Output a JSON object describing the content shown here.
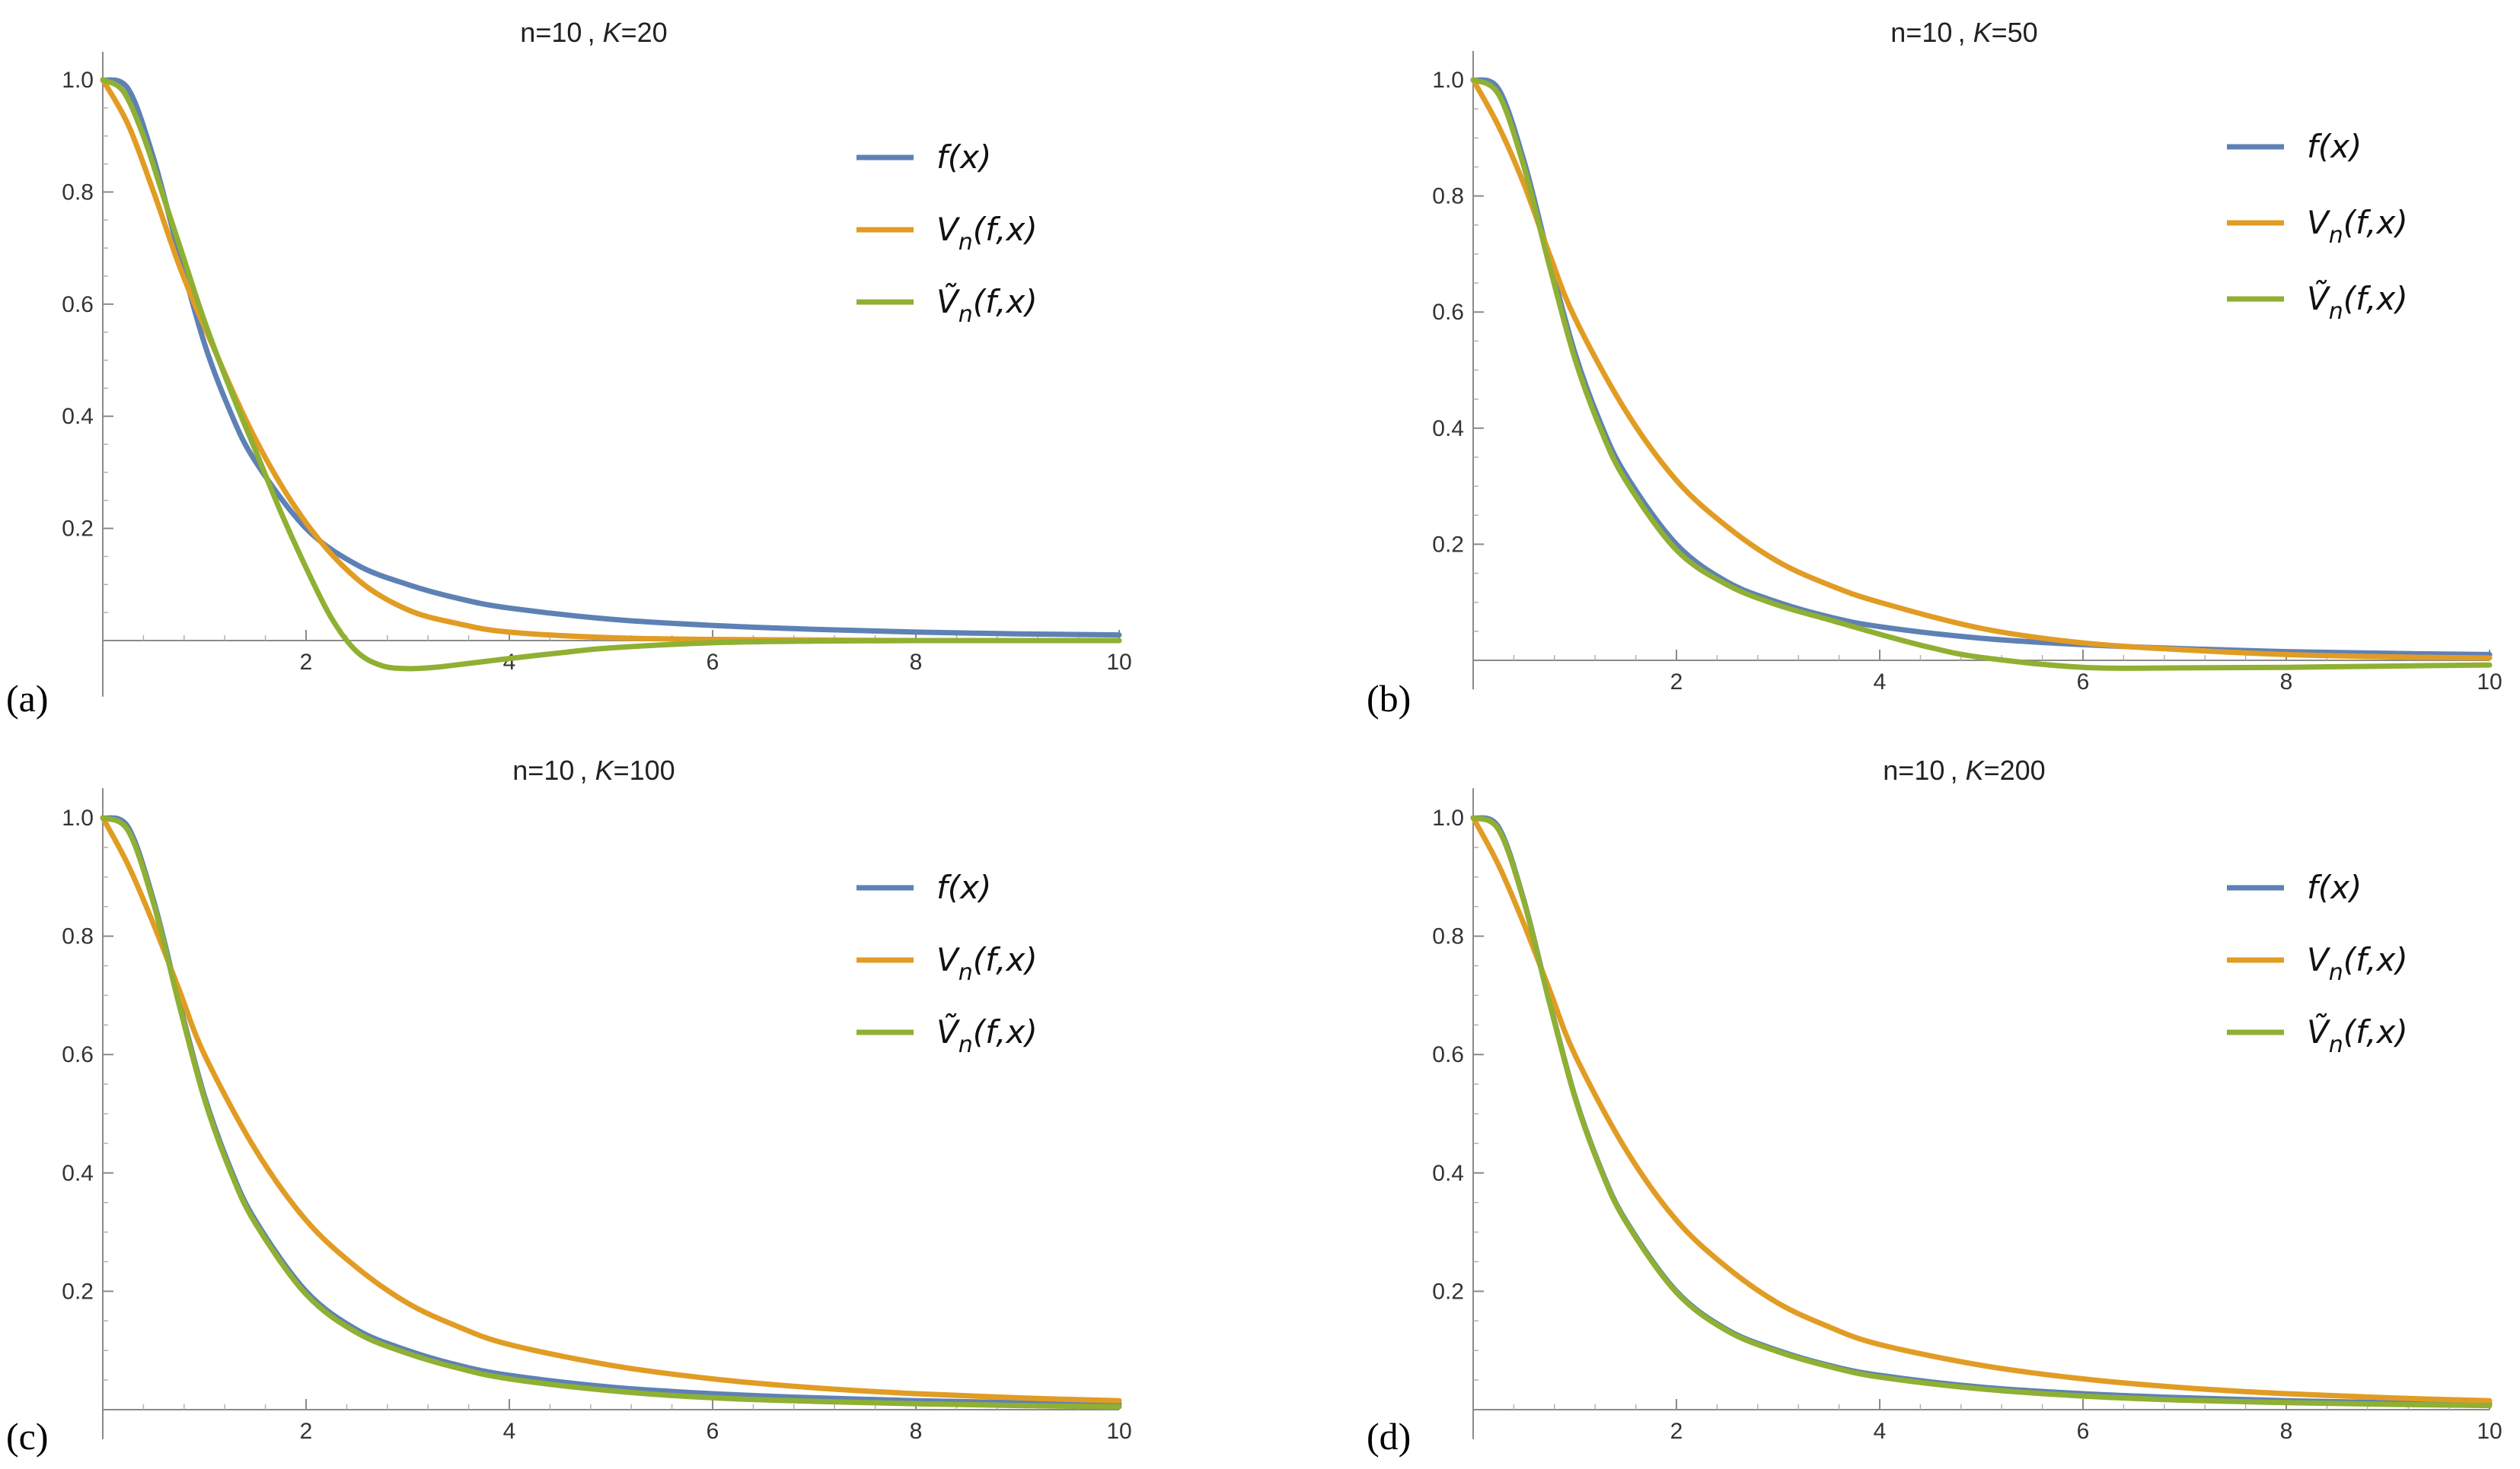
{
  "chart_data": [
    {
      "type": "line",
      "panel_label": "(a)",
      "title_prefix": "n=10 ,",
      "title_k": "K=20",
      "xlim": [
        0,
        10
      ],
      "ylim": [
        -0.1,
        1.05
      ],
      "x_ticks": [
        2,
        4,
        6,
        8,
        10
      ],
      "x_tick_labels": [
        "2",
        "4",
        "6",
        "8",
        "10"
      ],
      "y_ticks": [
        0.2,
        0.4,
        0.6,
        0.8,
        1.0
      ],
      "y_tick_labels": [
        "0.2",
        "0.4",
        "0.6",
        "0.8",
        "1.0"
      ],
      "legend_position": "top-right",
      "series": [
        {
          "name": "f(x)",
          "color": "#5e81b5",
          "x": [
            0,
            0.25,
            0.5,
            0.75,
            1,
            1.25,
            1.5,
            2,
            2.5,
            3,
            3.5,
            4,
            5,
            6,
            7,
            8,
            9,
            10
          ],
          "y": [
            1,
            0.984,
            0.86,
            0.69,
            0.53,
            0.41,
            0.32,
            0.2,
            0.135,
            0.1,
            0.075,
            0.058,
            0.038,
            0.027,
            0.02,
            0.015,
            0.012,
            0.01
          ]
        },
        {
          "name": "Vn(f,x)",
          "color": "#e19c24",
          "x": [
            0,
            0.25,
            0.5,
            0.75,
            1,
            1.5,
            2,
            2.5,
            3,
            3.5,
            4,
            5,
            6,
            7,
            8,
            9,
            10
          ],
          "y": [
            1,
            0.92,
            0.8,
            0.67,
            0.56,
            0.36,
            0.21,
            0.11,
            0.055,
            0.03,
            0.015,
            0.005,
            0.002,
            0.001,
            0,
            0,
            0
          ]
        },
        {
          "name": "Ṽn(f,x)",
          "color": "#8fb032",
          "x": [
            0,
            0.2,
            0.4,
            0.6,
            0.8,
            1,
            1.25,
            1.5,
            1.75,
            2,
            2.25,
            2.5,
            2.75,
            3,
            3.25,
            3.5,
            4,
            4.5,
            5,
            6,
            7,
            8,
            9,
            10
          ],
          "y": [
            1,
            0.98,
            0.9,
            0.79,
            0.68,
            0.57,
            0.45,
            0.34,
            0.23,
            0.13,
            0.04,
            -0.02,
            -0.045,
            -0.05,
            -0.048,
            -0.043,
            -0.032,
            -0.022,
            -0.013,
            -0.004,
            -0.001,
            0,
            0,
            0
          ]
        }
      ]
    },
    {
      "type": "line",
      "panel_label": "(b)",
      "title_prefix": "n=10 ,",
      "title_k": "K=50",
      "xlim": [
        0,
        10
      ],
      "ylim": [
        -0.05,
        1.05
      ],
      "x_ticks": [
        2,
        4,
        6,
        8,
        10
      ],
      "x_tick_labels": [
        "2",
        "4",
        "6",
        "8",
        "10"
      ],
      "y_ticks": [
        0.2,
        0.4,
        0.6,
        0.8,
        1.0
      ],
      "y_tick_labels": [
        "0.2",
        "0.4",
        "0.6",
        "0.8",
        "1.0"
      ],
      "legend_position": "top-right",
      "series": [
        {
          "name": "f(x)",
          "color": "#5e81b5",
          "x": [
            0,
            0.25,
            0.5,
            0.75,
            1,
            1.25,
            1.5,
            2,
            2.5,
            3,
            3.5,
            4,
            5,
            6,
            7,
            8,
            9,
            10
          ],
          "y": [
            1,
            0.984,
            0.86,
            0.69,
            0.53,
            0.41,
            0.32,
            0.2,
            0.135,
            0.1,
            0.075,
            0.058,
            0.038,
            0.027,
            0.02,
            0.015,
            0.012,
            0.01
          ]
        },
        {
          "name": "Vn(f,x)",
          "color": "#e19c24",
          "x": [
            0,
            0.25,
            0.5,
            0.75,
            1,
            1.5,
            2,
            2.5,
            3,
            3.5,
            4,
            5,
            6,
            7,
            8,
            9,
            10
          ],
          "y": [
            1,
            0.92,
            0.82,
            0.7,
            0.59,
            0.43,
            0.31,
            0.23,
            0.17,
            0.13,
            0.1,
            0.055,
            0.03,
            0.018,
            0.01,
            0.006,
            0.004
          ]
        },
        {
          "name": "Ṽn(f,x)",
          "color": "#8fb032",
          "x": [
            0,
            0.25,
            0.5,
            0.75,
            1,
            1.25,
            1.5,
            2,
            2.5,
            3,
            3.5,
            4,
            4.5,
            5,
            6,
            7,
            8,
            9,
            10
          ],
          "y": [
            1,
            0.975,
            0.85,
            0.68,
            0.52,
            0.4,
            0.31,
            0.19,
            0.13,
            0.095,
            0.07,
            0.045,
            0.022,
            0.005,
            -0.012,
            -0.013,
            -0.012,
            -0.01,
            -0.008
          ]
        }
      ]
    },
    {
      "type": "line",
      "panel_label": "(c)",
      "title_prefix": "n=10 ,",
      "title_k": "K=100",
      "xlim": [
        0,
        10
      ],
      "ylim": [
        -0.05,
        1.05
      ],
      "x_ticks": [
        2,
        4,
        6,
        8,
        10
      ],
      "x_tick_labels": [
        "2",
        "4",
        "6",
        "8",
        "10"
      ],
      "y_ticks": [
        0.2,
        0.4,
        0.6,
        0.8,
        1.0
      ],
      "y_tick_labels": [
        "0.2",
        "0.4",
        "0.6",
        "0.8",
        "1.0"
      ],
      "legend_position": "top-right",
      "series": [
        {
          "name": "f(x)",
          "color": "#5e81b5",
          "x": [
            0,
            0.25,
            0.5,
            0.75,
            1,
            1.25,
            1.5,
            2,
            2.5,
            3,
            3.5,
            4,
            5,
            6,
            7,
            8,
            9,
            10
          ],
          "y": [
            1,
            0.984,
            0.86,
            0.69,
            0.53,
            0.41,
            0.32,
            0.2,
            0.135,
            0.1,
            0.075,
            0.058,
            0.038,
            0.027,
            0.02,
            0.015,
            0.012,
            0.01
          ]
        },
        {
          "name": "Vn(f,x)",
          "color": "#e19c24",
          "x": [
            0,
            0.25,
            0.5,
            0.75,
            1,
            1.5,
            2,
            2.5,
            3,
            3.5,
            4,
            5,
            6,
            7,
            8,
            9,
            10
          ],
          "y": [
            1,
            0.92,
            0.82,
            0.71,
            0.6,
            0.44,
            0.32,
            0.24,
            0.18,
            0.14,
            0.11,
            0.075,
            0.052,
            0.037,
            0.027,
            0.02,
            0.015
          ]
        },
        {
          "name": "Ṽn(f,x)",
          "color": "#8fb032",
          "x": [
            0,
            0.25,
            0.5,
            0.75,
            1,
            1.25,
            1.5,
            2,
            2.5,
            3,
            3.5,
            4,
            5,
            6,
            7,
            8,
            9,
            10
          ],
          "y": [
            1,
            0.978,
            0.855,
            0.685,
            0.525,
            0.405,
            0.315,
            0.195,
            0.13,
            0.095,
            0.07,
            0.052,
            0.032,
            0.02,
            0.014,
            0.01,
            0.007,
            0.005
          ]
        }
      ]
    },
    {
      "type": "line",
      "panel_label": "(d)",
      "title_prefix": "n=10 ,",
      "title_k": "K=200",
      "xlim": [
        0,
        10
      ],
      "ylim": [
        -0.05,
        1.05
      ],
      "x_ticks": [
        2,
        4,
        6,
        8,
        10
      ],
      "x_tick_labels": [
        "2",
        "4",
        "6",
        "8",
        "10"
      ],
      "y_ticks": [
        0.2,
        0.4,
        0.6,
        0.8,
        1.0
      ],
      "y_tick_labels": [
        "0.2",
        "0.4",
        "0.6",
        "0.8",
        "1.0"
      ],
      "legend_position": "top-right",
      "series": [
        {
          "name": "f(x)",
          "color": "#5e81b5",
          "x": [
            0,
            0.25,
            0.5,
            0.75,
            1,
            1.25,
            1.5,
            2,
            2.5,
            3,
            3.5,
            4,
            5,
            6,
            7,
            8,
            9,
            10
          ],
          "y": [
            1,
            0.984,
            0.86,
            0.69,
            0.53,
            0.41,
            0.32,
            0.2,
            0.135,
            0.1,
            0.075,
            0.058,
            0.038,
            0.027,
            0.02,
            0.015,
            0.012,
            0.01
          ]
        },
        {
          "name": "Vn(f,x)",
          "color": "#e19c24",
          "x": [
            0,
            0.25,
            0.5,
            0.75,
            1,
            1.5,
            2,
            2.5,
            3,
            3.5,
            4,
            5,
            6,
            7,
            8,
            9,
            10
          ],
          "y": [
            1,
            0.92,
            0.82,
            0.71,
            0.6,
            0.44,
            0.32,
            0.24,
            0.18,
            0.14,
            0.11,
            0.075,
            0.052,
            0.037,
            0.027,
            0.02,
            0.015
          ]
        },
        {
          "name": "Ṽn(f,x)",
          "color": "#8fb032",
          "x": [
            0,
            0.25,
            0.5,
            0.75,
            1,
            1.25,
            1.5,
            2,
            2.5,
            3,
            3.5,
            4,
            5,
            6,
            7,
            8,
            9,
            10
          ],
          "y": [
            1,
            0.98,
            0.858,
            0.688,
            0.528,
            0.408,
            0.318,
            0.198,
            0.133,
            0.098,
            0.073,
            0.055,
            0.035,
            0.023,
            0.016,
            0.012,
            0.009,
            0.007
          ]
        }
      ]
    }
  ]
}
